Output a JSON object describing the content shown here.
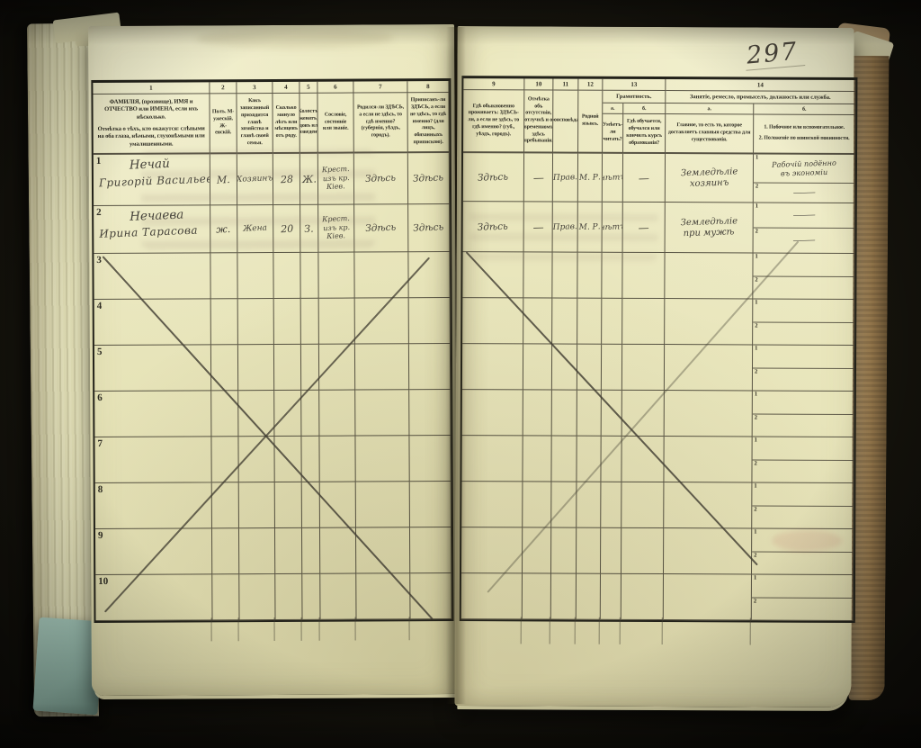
{
  "page_number": "297",
  "left_table": {
    "col_numbers": [
      "1",
      "2",
      "3",
      "4",
      "5",
      "6",
      "7",
      "8"
    ],
    "headers": {
      "c1_line1": "ФАМИЛІЯ, (прозвище), ИМЯ и ОТЧЕСТВО или ИМЕНА, если ихъ нѣсколько.",
      "c1_line2": "Отмѣтка о тѣхъ, кто окажутся: слѣпыми на оба глаза, нѣмыми, глухонѣмыми или умалишенными.",
      "c2": "Полъ. М-ужескій. Ж-енскій.",
      "c3": "Какъ записанный приходится главѣ хозяйства и главѣ своей семьи.",
      "c4": "Сколько минуло лѣтъ или мѣсяцевъ отъ роду.",
      "c5": "Холостъ, женатъ, вдовъ или разведенъ.",
      "c6": "Сословіе, состояніе или званіе.",
      "c7": "Родился-ли ЗДѢСЬ, а если не здѣсь, то гдѣ именно? (губернія, уѣздъ, городъ).",
      "c8": "Приписанъ-ли ЗДѢСЬ, а если не здѣсь, то гдѣ именно? (для лицъ, обязанныхъ припискою)."
    }
  },
  "right_table": {
    "col_numbers": [
      "9",
      "10",
      "11",
      "12",
      "13",
      "14"
    ],
    "headers": {
      "c9": "Гдѣ обыкновенно проживаетъ: ЗДѢСЬ-ли, а если не здѣсь, то гдѣ именно? (губ., уѣздъ, городъ).",
      "c10": "Отмѣтка объ отсутствіи, отлучкѣ и о временномъ здѣсь пребываніи.",
      "c11": "Вѣроисповѣданіе.",
      "c12": "Родной языкъ.",
      "c13_group": "Грамотность.",
      "c13a_letter": "а.",
      "c13b_letter": "б.",
      "c13a": "Умѣетъ-ли читать?",
      "c13b": "Гдѣ обучается, обучался или кончилъ курсъ образованія?",
      "c14_group": "Занятіе, ремесло, промыселъ, должность или служба.",
      "c14a_letter": "а.",
      "c14b_letter": "б.",
      "c14a": "Главное, то есть то, которое доставляетъ главныя средства для существованія.",
      "c14b_line1": "1. Побочное или вспомогательное.",
      "c14b_line2": "2. Положеніе по воинской повинности."
    }
  },
  "rows": [
    {
      "num": "1",
      "surname": "Нечай",
      "name": "Григорій Васильевъ",
      "sex": "М.",
      "relation": "Хозяинъ",
      "age": "28",
      "marital": "Ж.",
      "estate_l1": "Крест.",
      "estate_l2": "изъ кр.",
      "estate_l3": "Кіев.",
      "born": "Здѣсь",
      "registered": "Здѣсь",
      "lives": "Здѣсь",
      "absence": "—",
      "religion": "Прав.",
      "language": "М. Р.",
      "reads": "нѣтъ",
      "education": "—",
      "occupation_l1": "Земледѣліе",
      "occupation_l2": "хозяинъ",
      "side_l1": "Рабочій подённо",
      "side_l2": "въ экономіи",
      "military": "———"
    },
    {
      "num": "2",
      "surname": "Нечаева",
      "name": "Ирина Тарасова",
      "sex": "ж.",
      "relation": "Жена",
      "age": "20",
      "marital": "З.",
      "estate_l1": "Крест.",
      "estate_l2": "изъ кр.",
      "estate_l3": "Кіев.",
      "born": "Здѣсь",
      "registered": "Здѣсь",
      "lives": "Здѣсь",
      "absence": "—",
      "religion": "Прав.",
      "language": "М. Р.",
      "reads": "нѣтъ",
      "education": "—",
      "occupation_l1": "Земледѣліе",
      "occupation_l2": "при мужѣ",
      "side_l1": "———",
      "side_l2": "",
      "military": "———"
    }
  ],
  "empty_row_numbers": [
    "3",
    "4",
    "5",
    "6",
    "7",
    "8",
    "9",
    "10"
  ],
  "subrow_labels": [
    "1",
    "2"
  ]
}
